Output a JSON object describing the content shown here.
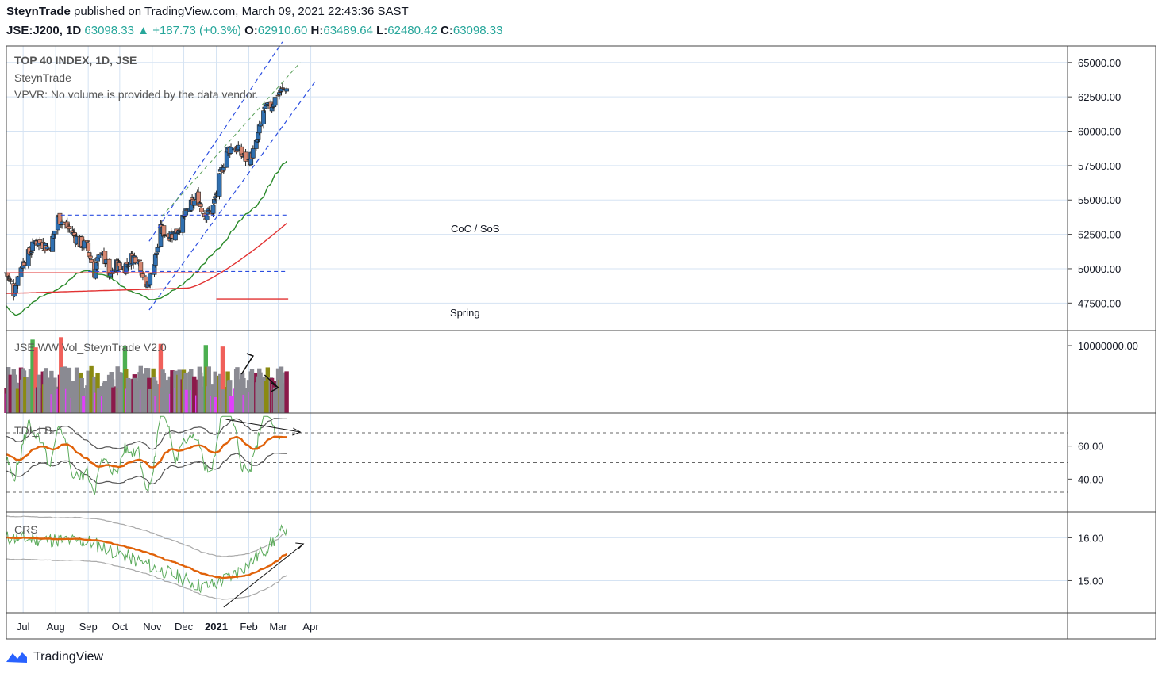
{
  "header": {
    "author": "SteynTrade",
    "published": "published on TradingView.com, March 09, 2021 22:43:36 SAST",
    "symbol": "JSE:J200, 1D",
    "last": "63098.33",
    "change": "+187.73 (+0.3%)",
    "o_label": "O:",
    "o_value": "62910.60",
    "h_label": "H:",
    "h_value": "63489.64",
    "l_label": "L:",
    "l_value": "62480.42",
    "c_label": "C:",
    "c_value": "63098.33"
  },
  "legend": {
    "title": "TOP 40 INDEX, 1D, JSE",
    "author": "SteynTrade",
    "vpvr": "VPVR: No volume is provided by the data vendor."
  },
  "annotations": {
    "coc": "CoC / SoS",
    "spring": "Spring"
  },
  "panes": {
    "volume": "JSE WW Vol_SteynTrade V2.0",
    "tdi": "TDI_LB",
    "crs": "CRS"
  },
  "footer": {
    "brand": "TradingView"
  },
  "colors": {
    "up": "#26a69a",
    "down": "#ef5350",
    "candle_up": "#2f6fb0",
    "candle_down": "#d68770",
    "ma_green": "#2a8a2a",
    "ma_red": "#e23232",
    "channel": "#2b4ee0",
    "tdi_orange": "#e0620a",
    "vol_gray": "#8a8a92",
    "vol_maroon": "#8b1a4a",
    "vol_olive": "#8a8a12",
    "vol_green": "#4caf50",
    "vol_red": "#f0605a",
    "vol_magenta": "#e040fb"
  },
  "chart_data": [
    {
      "type": "candlestick",
      "title": "TOP 40 INDEX, 1D, JSE",
      "x_tick_labels": [
        "Jul",
        "Aug",
        "Sep",
        "Oct",
        "Nov",
        "Dec",
        "2021",
        "Feb",
        "Mar",
        "Apr"
      ],
      "y_tick_labels": [
        "47500.00",
        "50000.00",
        "52500.00",
        "55000.00",
        "57500.00",
        "60000.00",
        "62500.00",
        "65000.00"
      ],
      "ylim": [
        45500,
        66200
      ],
      "close_approx": [
        {
          "date": "2020-06-15",
          "close": 49700
        },
        {
          "date": "2020-06-22",
          "close": 48300
        },
        {
          "date": "2020-06-29",
          "close": 50200
        },
        {
          "date": "2020-07-06",
          "close": 51000
        },
        {
          "date": "2020-07-13",
          "close": 52000
        },
        {
          "date": "2020-07-20",
          "close": 51800
        },
        {
          "date": "2020-07-27",
          "close": 51400
        },
        {
          "date": "2020-08-03",
          "close": 53800
        },
        {
          "date": "2020-08-10",
          "close": 53200
        },
        {
          "date": "2020-08-17",
          "close": 52600
        },
        {
          "date": "2020-08-24",
          "close": 51900
        },
        {
          "date": "2020-08-31",
          "close": 51600
        },
        {
          "date": "2020-09-07",
          "close": 49700
        },
        {
          "date": "2020-09-14",
          "close": 51500
        },
        {
          "date": "2020-09-21",
          "close": 49300
        },
        {
          "date": "2020-09-28",
          "close": 50300
        },
        {
          "date": "2020-10-05",
          "close": 50100
        },
        {
          "date": "2020-10-12",
          "close": 50800
        },
        {
          "date": "2020-10-19",
          "close": 50900
        },
        {
          "date": "2020-10-26",
          "close": 48500
        },
        {
          "date": "2020-11-02",
          "close": 50000
        },
        {
          "date": "2020-11-09",
          "close": 52800
        },
        {
          "date": "2020-11-16",
          "close": 52500
        },
        {
          "date": "2020-11-23",
          "close": 52600
        },
        {
          "date": "2020-11-30",
          "close": 53500
        },
        {
          "date": "2020-12-07",
          "close": 54500
        },
        {
          "date": "2020-12-14",
          "close": 55200
        },
        {
          "date": "2020-12-21",
          "close": 53900
        },
        {
          "date": "2020-12-28",
          "close": 54200
        },
        {
          "date": "2021-01-04",
          "close": 56500
        },
        {
          "date": "2021-01-11",
          "close": 58600
        },
        {
          "date": "2021-01-18",
          "close": 58900
        },
        {
          "date": "2021-01-25",
          "close": 58300
        },
        {
          "date": "2021-02-01",
          "close": 57800
        },
        {
          "date": "2021-02-08",
          "close": 59000
        },
        {
          "date": "2021-02-15",
          "close": 61500
        },
        {
          "date": "2021-02-22",
          "close": 61800
        },
        {
          "date": "2021-03-01",
          "close": 62800
        },
        {
          "date": "2021-03-09",
          "close": 63098.33
        }
      ],
      "horizontal_levels": [
        {
          "name": "resistance",
          "value": 53900,
          "color": "#2b4ee0"
        },
        {
          "name": "support",
          "value": 49800,
          "color": "#2b4ee0"
        },
        {
          "name": "red_level_1",
          "value": 49700,
          "color": "#e23232"
        },
        {
          "name": "red_level_2",
          "value": 47800,
          "color": "#e23232"
        }
      ]
    },
    {
      "type": "bar",
      "title": "JSE WW Vol_SteynTrade V2.0",
      "y_tick_labels": [
        "10000000.00"
      ]
    },
    {
      "type": "line",
      "title": "TDI_LB",
      "y_tick_labels": [
        "40.00",
        "60.00"
      ],
      "levels": [
        32,
        50,
        68
      ]
    },
    {
      "type": "line",
      "title": "CRS",
      "y_tick_labels": [
        "15.00",
        "16.00"
      ]
    }
  ]
}
